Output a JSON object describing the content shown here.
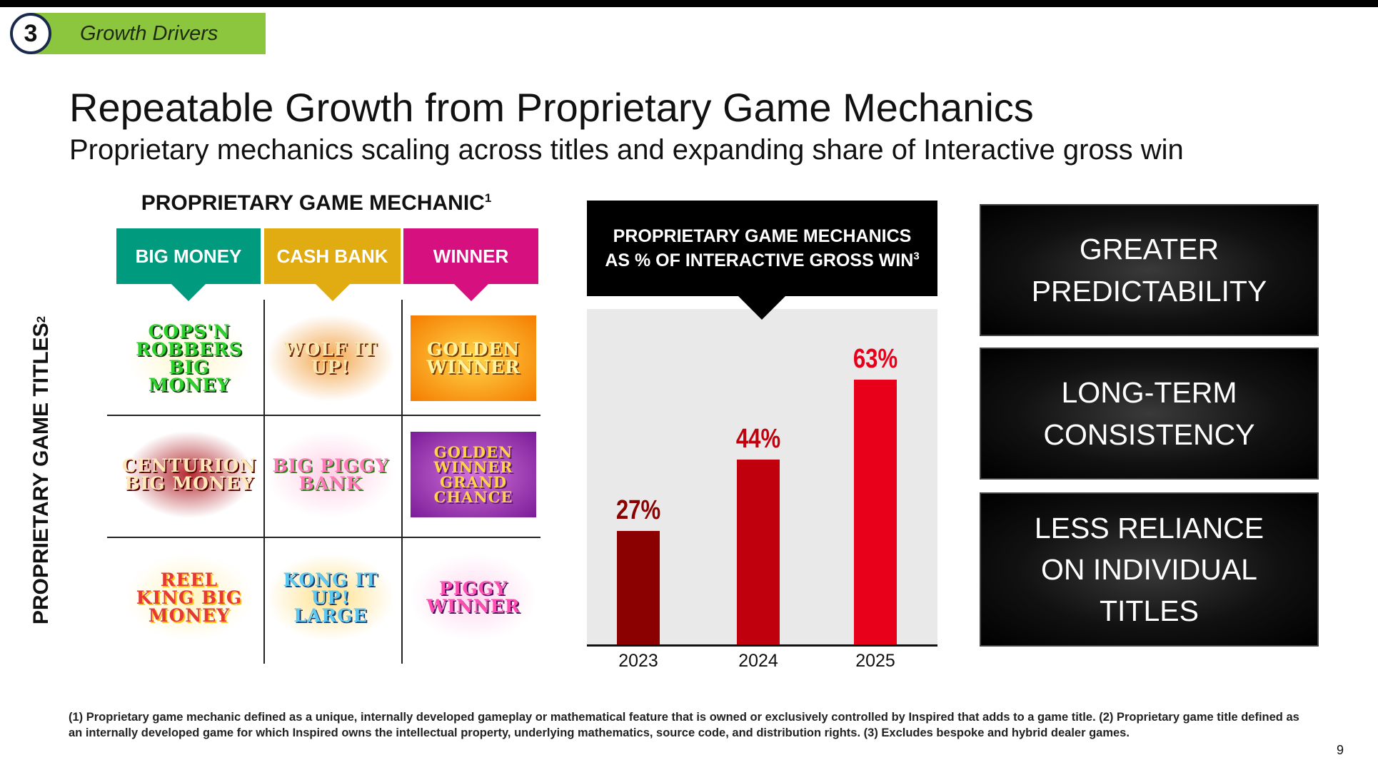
{
  "section": {
    "number": "3",
    "label": "Growth Drivers"
  },
  "title": "Repeatable Growth from Proprietary Game Mechanics",
  "subtitle": "Proprietary mechanics scaling across titles and expanding share of Interactive gross win",
  "mechanics": {
    "title": "PROPRIETARY GAME MECHANIC",
    "title_sup": "1",
    "columns": [
      {
        "label": "BIG MONEY",
        "color": "#009a7e"
      },
      {
        "label": "CASH BANK",
        "color": "#e0ac12"
      },
      {
        "label": "WINNER",
        "color": "#d6107e"
      }
    ],
    "row_axis_label": "PROPRIETARY GAME TITLES",
    "row_axis_sup": "2",
    "games": [
      [
        "COPS'N ROBBERS BIG MONEY",
        "WOLF IT UP!",
        "GOLDEN WINNER"
      ],
      [
        "CENTURION BIG MONEY",
        "BIG PIGGY BANK",
        "GOLDEN WINNER GRAND CHANCE"
      ],
      [
        "REEL KING BIG MONEY",
        "KONG IT UP! LARGE",
        "PIGGY WINNER"
      ]
    ]
  },
  "chart_header": {
    "line1": "PROPRIETARY GAME MECHANICS",
    "line2": "AS % OF INTERACTIVE GROSS WIN",
    "sup": "3"
  },
  "chart_data": {
    "type": "bar",
    "title": "PROPRIETARY GAME MECHANICS AS % OF INTERACTIVE GROSS WIN",
    "categories": [
      "2023",
      "2024",
      "2025"
    ],
    "values": [
      27,
      44,
      63
    ],
    "value_labels": [
      "27%",
      "44%",
      "63%"
    ],
    "unit": "%",
    "bar_colors": [
      "#8b0000",
      "#c0000c",
      "#e8001b"
    ],
    "ylim": [
      0,
      63
    ],
    "grid": false,
    "legend": "none"
  },
  "benefits": [
    [
      "GREATER",
      "PREDICTABILITY"
    ],
    [
      "LONG-TERM",
      "CONSISTENCY"
    ],
    [
      "LESS RELIANCE",
      "ON INDIVIDUAL",
      "TITLES"
    ]
  ],
  "footnote": "(1) Proprietary game mechanic defined as a unique, internally developed gameplay or mathematical feature that is owned or exclusively controlled by Inspired that adds to a game title. (2) Proprietary game title defined as an internally developed game for which Inspired owns the intellectual property, underlying mathematics, source code, and distribution rights. (3) Excludes bespoke and hybrid dealer games.",
  "page_number": "9"
}
